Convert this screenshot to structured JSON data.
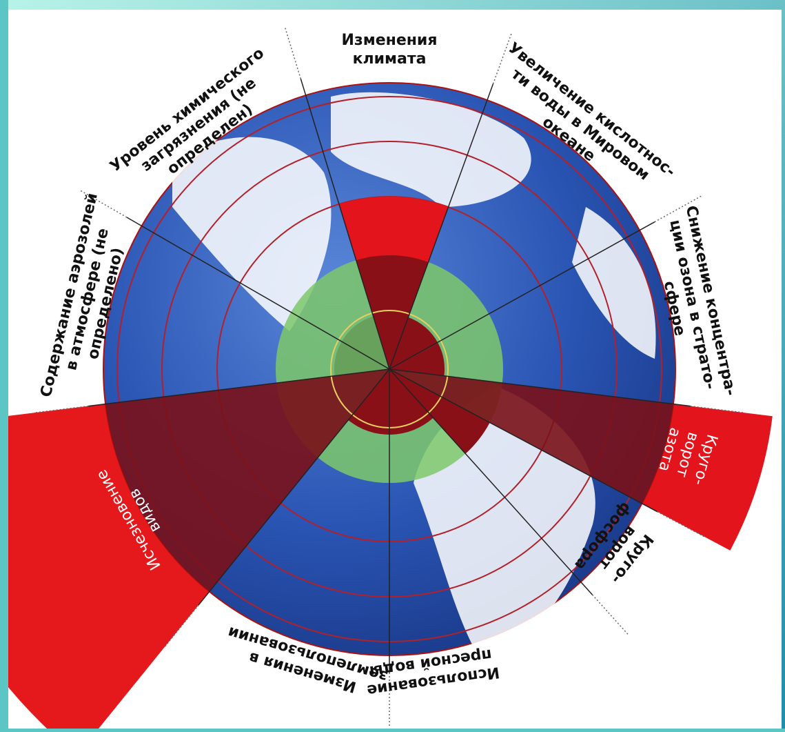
{
  "labels": {
    "climate": [
      "Изменения",
      "климата"
    ],
    "ocean": [
      "Увеличение кислотнос-",
      "ти воды в Мировом",
      "океане"
    ],
    "ozone": [
      "Снижение концентра-",
      "ции озона в страто-",
      "сфере"
    ],
    "nitrogen": [
      "Круго-",
      "ворот",
      "азота"
    ],
    "phosphorus": [
      "Круго-",
      "ворот",
      "фосфора"
    ],
    "freshwater": [
      "Использование",
      "пресной воды"
    ],
    "land": [
      "Изменения в",
      "землепользовании"
    ],
    "biodiversity": [
      "Исчезновение",
      "видов"
    ],
    "aerosols": [
      "Содержание аэрозолей",
      "в атмосфере (не",
      "определено)"
    ],
    "chemical": [
      "Уровень химического",
      "загрязнения (не",
      "определен)"
    ]
  }
}
